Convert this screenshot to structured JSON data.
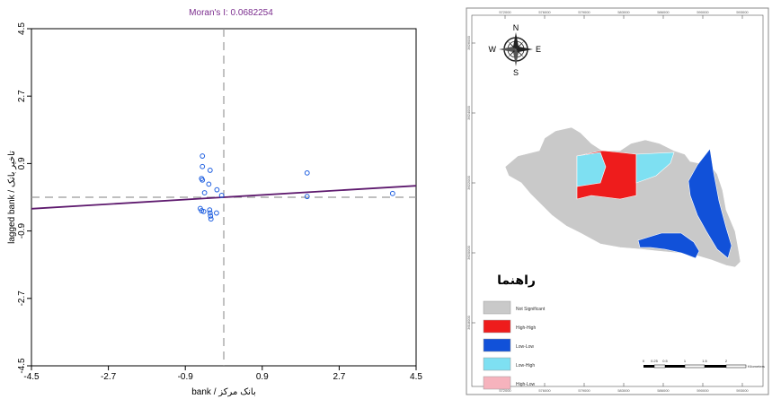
{
  "chart_data": [
    {
      "type": "scatter",
      "title": "Moran's I: 0.0682254",
      "xlabel": "bank / بانک مرکز",
      "ylabel": "lagged bank / تاخیر بانک",
      "xlim": [
        -4.5,
        4.5
      ],
      "ylim": [
        -4.5,
        4.5
      ],
      "xticks": [
        "-4.5",
        "-2.7",
        "-0.9",
        "0.9",
        "2.7",
        "4.5"
      ],
      "yticks": [
        "-4.5",
        "-2.7",
        "-0.9",
        "0.9",
        "2.7",
        "4.5"
      ],
      "x_tick_values": [
        -4.5,
        -2.7,
        -0.9,
        0.9,
        2.7,
        4.5
      ],
      "y_tick_values": [
        -4.5,
        -2.7,
        -0.9,
        0.9,
        2.7,
        4.5
      ],
      "mean_lines": {
        "x": 0,
        "y": 0
      },
      "regression": {
        "slope": 0.0682254,
        "intercept": 0.0
      },
      "points": [
        {
          "x": -0.5,
          "y": 1.1
        },
        {
          "x": -0.5,
          "y": 0.82
        },
        {
          "x": -0.32,
          "y": 0.72
        },
        {
          "x": -0.52,
          "y": 0.5
        },
        {
          "x": -0.5,
          "y": 0.46
        },
        {
          "x": -0.35,
          "y": 0.35
        },
        {
          "x": -0.16,
          "y": 0.2
        },
        {
          "x": -0.45,
          "y": 0.12
        },
        {
          "x": -0.05,
          "y": 0.05
        },
        {
          "x": -0.55,
          "y": -0.3
        },
        {
          "x": -0.52,
          "y": -0.36
        },
        {
          "x": -0.47,
          "y": -0.38
        },
        {
          "x": -0.33,
          "y": -0.34
        },
        {
          "x": -0.32,
          "y": -0.42
        },
        {
          "x": -0.31,
          "y": -0.5
        },
        {
          "x": -0.3,
          "y": -0.58
        },
        {
          "x": -0.17,
          "y": -0.42
        },
        {
          "x": 1.95,
          "y": 0.65
        },
        {
          "x": 1.95,
          "y": 0.02
        },
        {
          "x": 3.95,
          "y": 0.1
        }
      ],
      "colors": {
        "title": "#7b2d8e",
        "points": "#1f5fe0",
        "regression": "#5e1a6e",
        "mean_lines": "#999999"
      }
    }
  ],
  "map": {
    "top_ticks": [
      "572000",
      "576000",
      "579000",
      "583000",
      "586000",
      "590000",
      "593000"
    ],
    "left_ticks": [
      "3626000",
      "3624000",
      "3622000",
      "3620000",
      "3618000"
    ],
    "compass": {
      "n": "N",
      "s": "S",
      "e": "E",
      "w": "W"
    },
    "legend_title": "راهنما",
    "legend": [
      {
        "label": "Not Significant",
        "color": "#c9c9c9"
      },
      {
        "label": "High-High",
        "color": "#ee1c1c"
      },
      {
        "label": "Low-Low",
        "color": "#1151d9"
      },
      {
        "label": "Low-High",
        "color": "#7ee0f2"
      },
      {
        "label": "High-Low",
        "color": "#f6b3bd"
      }
    ],
    "scale_labels": [
      "0",
      "0.25",
      "0.5",
      "1",
      "1.5",
      "2"
    ],
    "scale_unit": "Kilometers"
  }
}
